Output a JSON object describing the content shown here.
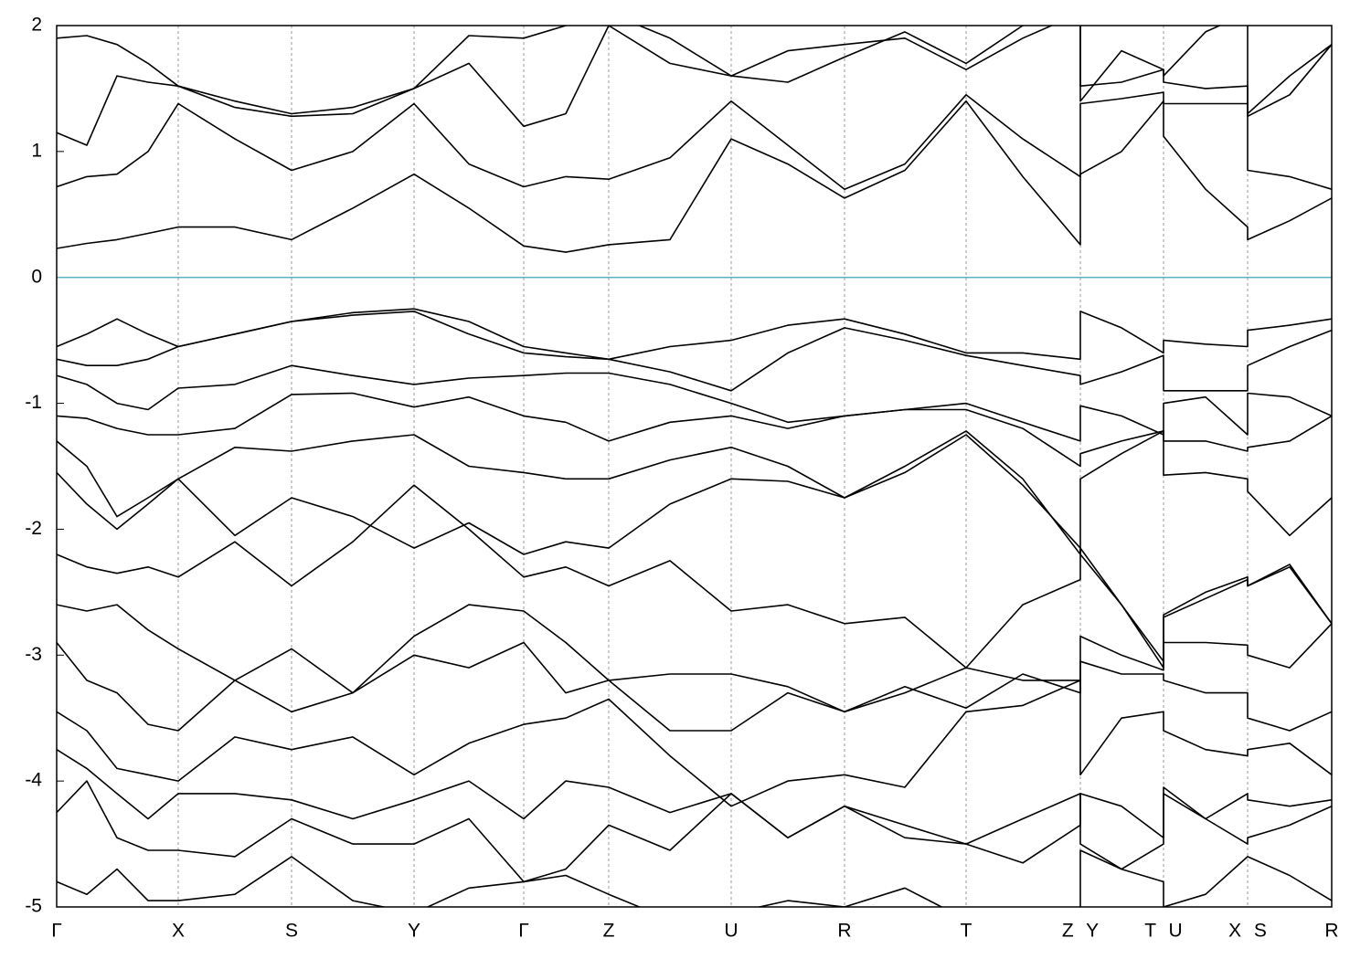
{
  "chart_data": {
    "type": "line",
    "x": [
      0,
      33,
      66,
      100,
      133,
      195,
      257,
      324,
      391,
      451,
      511,
      557,
      604,
      671,
      738,
      800,
      862,
      928,
      995,
      1057,
      1120,
      1120,
      1165,
      1211,
      1211,
      1257,
      1303,
      1303,
      1349,
      1395
    ],
    "xlim": [
      0,
      1395
    ],
    "xticks": [
      {
        "value": 0,
        "label": "Γ"
      },
      {
        "value": 133,
        "label": "X"
      },
      {
        "value": 257,
        "label": "S"
      },
      {
        "value": 391,
        "label": "Y"
      },
      {
        "value": 511,
        "label": "Γ"
      },
      {
        "value": 604,
        "label": "Z"
      },
      {
        "value": 738,
        "label": "U"
      },
      {
        "value": 862,
        "label": "R"
      },
      {
        "value": 995,
        "label": "T"
      },
      {
        "value": 1120,
        "label": "Z Y"
      },
      {
        "value": 1211,
        "label": "T U"
      },
      {
        "value": 1303,
        "label": "X S"
      },
      {
        "value": 1395,
        "label": "R"
      }
    ],
    "ylim": [
      -5,
      2
    ],
    "yticks": [
      2,
      1,
      0,
      -1,
      -2,
      -3,
      -4,
      -5
    ],
    "grid": true,
    "reference_line": {
      "value": 0,
      "color": "#5ab4c8"
    },
    "series": [
      {
        "color": "#000000",
        "values": [
          0.23,
          0.27,
          0.3,
          0.35,
          0.4,
          0.4,
          0.3,
          0.55,
          0.82,
          0.55,
          0.25,
          0.2,
          0.26,
          0.3,
          1.1,
          0.9,
          0.63,
          0.85,
          1.4,
          0.8,
          0.26,
          0.82,
          1.0,
          1.4,
          1.12,
          0.7,
          0.4,
          0.3,
          0.45,
          0.63
        ]
      },
      {
        "color": "#000000",
        "values": [
          0.72,
          0.8,
          0.82,
          1.0,
          1.38,
          1.1,
          0.85,
          1.0,
          1.38,
          0.9,
          0.72,
          0.8,
          0.78,
          0.95,
          1.4,
          1.05,
          0.7,
          0.9,
          1.45,
          1.1,
          0.8,
          1.38,
          1.42,
          1.47,
          1.38,
          1.38,
          1.38,
          0.85,
          0.8,
          0.7
        ]
      },
      {
        "color": "#000000",
        "values": [
          1.15,
          1.05,
          1.6,
          1.55,
          1.52,
          1.35,
          1.28,
          1.3,
          1.5,
          1.7,
          1.2,
          1.3,
          2.0,
          1.7,
          1.6,
          1.55,
          1.75,
          1.95,
          1.7,
          2.0,
          2.1,
          1.52,
          1.55,
          1.65,
          1.55,
          1.5,
          1.52,
          1.28,
          1.45,
          1.85
        ]
      },
      {
        "color": "#000000",
        "values": [
          1.9,
          1.92,
          1.85,
          1.7,
          1.52,
          1.4,
          1.3,
          1.35,
          1.5,
          1.92,
          1.9,
          2.0,
          2.1,
          1.9,
          1.6,
          1.8,
          1.85,
          1.9,
          1.65,
          1.9,
          2.1,
          1.4,
          1.8,
          1.65,
          1.6,
          1.95,
          2.1,
          1.3,
          1.6,
          1.85
        ]
      },
      {
        "color": "#000000",
        "values": [
          -0.55,
          -0.45,
          -0.33,
          -0.45,
          -0.55,
          -0.45,
          -0.35,
          -0.28,
          -0.25,
          -0.35,
          -0.55,
          -0.6,
          -0.65,
          -0.55,
          -0.5,
          -0.38,
          -0.33,
          -0.45,
          -0.6,
          -0.6,
          -0.65,
          -0.27,
          -0.4,
          -0.6,
          -0.5,
          -0.53,
          -0.55,
          -0.42,
          -0.38,
          -0.33
        ]
      },
      {
        "color": "#000000",
        "values": [
          -0.65,
          -0.7,
          -0.7,
          -0.65,
          -0.55,
          -0.45,
          -0.35,
          -0.3,
          -0.27,
          -0.45,
          -0.6,
          -0.63,
          -0.65,
          -0.75,
          -0.9,
          -0.6,
          -0.4,
          -0.5,
          -0.62,
          -0.7,
          -0.78,
          -0.85,
          -0.75,
          -0.62,
          -0.9,
          -0.9,
          -0.9,
          -0.7,
          -0.55,
          -0.42
        ]
      },
      {
        "color": "#000000",
        "values": [
          -0.78,
          -0.85,
          -1.0,
          -1.05,
          -0.88,
          -0.85,
          -0.7,
          -0.78,
          -0.85,
          -0.8,
          -0.78,
          -0.76,
          -0.76,
          -0.85,
          -1.0,
          -1.15,
          -1.1,
          -1.05,
          -1.0,
          -1.15,
          -1.3,
          -1.02,
          -1.1,
          -1.25,
          -1.0,
          -0.95,
          -1.25,
          -0.92,
          -0.95,
          -1.1
        ]
      },
      {
        "color": "#000000",
        "values": [
          -1.1,
          -1.12,
          -1.2,
          -1.25,
          -1.25,
          -1.2,
          -0.93,
          -0.92,
          -1.03,
          -0.95,
          -1.1,
          -1.15,
          -1.3,
          -1.15,
          -1.1,
          -1.2,
          -1.1,
          -1.05,
          -1.05,
          -1.2,
          -1.5,
          -1.4,
          -1.3,
          -1.22,
          -1.3,
          -1.3,
          -1.38,
          -1.35,
          -1.3,
          -1.1
        ]
      },
      {
        "color": "#000000",
        "values": [
          -1.3,
          -1.5,
          -1.9,
          -1.75,
          -1.6,
          -1.35,
          -1.38,
          -1.3,
          -1.25,
          -1.5,
          -1.55,
          -1.6,
          -1.6,
          -1.45,
          -1.35,
          -1.5,
          -1.75,
          -1.5,
          -1.22,
          -1.6,
          -2.2,
          -1.6,
          -1.4,
          -1.22,
          -1.57,
          -1.55,
          -1.6,
          -1.7,
          -2.05,
          -1.75
        ]
      },
      {
        "color": "#000000",
        "values": [
          -1.55,
          -1.8,
          -2.0,
          -1.8,
          -1.6,
          -2.05,
          -1.75,
          -1.9,
          -2.15,
          -1.95,
          -2.2,
          -2.1,
          -2.15,
          -1.8,
          -1.6,
          -1.62,
          -1.75,
          -1.55,
          -1.25,
          -1.65,
          -2.15,
          -2.2,
          -2.6,
          -3.05,
          -2.68,
          -2.5,
          -2.38,
          -2.45,
          -2.28,
          -2.75
        ]
      },
      {
        "color": "#000000",
        "values": [
          -2.2,
          -2.3,
          -2.35,
          -2.3,
          -2.38,
          -2.1,
          -2.45,
          -2.1,
          -1.65,
          -2.0,
          -2.38,
          -2.3,
          -2.45,
          -2.25,
          -2.65,
          -2.6,
          -2.75,
          -2.7,
          -3.1,
          -2.6,
          -2.4,
          -2.15,
          -2.6,
          -3.1,
          -2.7,
          -2.55,
          -2.4,
          -2.45,
          -2.3,
          -2.75
        ]
      },
      {
        "color": "#000000",
        "values": [
          -2.6,
          -2.65,
          -2.6,
          -2.8,
          -2.95,
          -3.2,
          -2.95,
          -3.3,
          -2.85,
          -2.6,
          -2.65,
          -2.9,
          -3.2,
          -3.15,
          -3.15,
          -3.25,
          -3.45,
          -3.3,
          -3.1,
          -3.2,
          -3.2,
          -2.85,
          -3.0,
          -3.12,
          -2.9,
          -2.9,
          -2.92,
          -3.0,
          -3.1,
          -2.75
        ]
      },
      {
        "color": "#000000",
        "values": [
          -2.9,
          -3.2,
          -3.3,
          -3.55,
          -3.6,
          -3.2,
          -3.45,
          -3.3,
          -3.0,
          -3.1,
          -2.9,
          -3.3,
          -3.2,
          -3.6,
          -3.6,
          -3.3,
          -3.45,
          -3.25,
          -3.42,
          -3.15,
          -3.3,
          -3.05,
          -3.15,
          -3.15,
          -3.2,
          -3.3,
          -3.3,
          -3.5,
          -3.6,
          -3.45
        ]
      },
      {
        "color": "#000000",
        "values": [
          -3.45,
          -3.6,
          -3.9,
          -3.95,
          -4.0,
          -3.65,
          -3.75,
          -3.65,
          -3.95,
          -3.7,
          -3.55,
          -3.5,
          -3.35,
          -3.8,
          -4.2,
          -4.0,
          -3.95,
          -4.05,
          -3.45,
          -3.4,
          -3.2,
          -3.95,
          -3.5,
          -3.45,
          -3.6,
          -3.75,
          -3.8,
          -3.75,
          -3.7,
          -3.95
        ]
      },
      {
        "color": "#000000",
        "values": [
          -3.75,
          -3.9,
          -4.1,
          -4.3,
          -4.1,
          -4.1,
          -4.15,
          -4.3,
          -4.15,
          -4.0,
          -4.3,
          -4.0,
          -4.05,
          -4.25,
          -4.1,
          -4.45,
          -4.2,
          -4.35,
          -4.5,
          -4.3,
          -4.1,
          -4.5,
          -4.7,
          -4.5,
          -4.05,
          -4.3,
          -4.1,
          -4.15,
          -4.2,
          -4.15
        ]
      },
      {
        "color": "#000000",
        "values": [
          -4.25,
          -4.0,
          -4.45,
          -4.55,
          -4.55,
          -4.6,
          -4.3,
          -4.5,
          -4.5,
          -4.3,
          -4.8,
          -4.7,
          -4.35,
          -4.55,
          -4.1,
          -4.45,
          -4.2,
          -4.45,
          -4.5,
          -4.65,
          -4.35,
          -4.1,
          -4.2,
          -4.45,
          -4.1,
          -4.3,
          -4.5,
          -4.45,
          -4.35,
          -4.2
        ]
      },
      {
        "color": "#000000",
        "values": [
          -4.8,
          -4.9,
          -4.7,
          -4.95,
          -4.95,
          -4.9,
          -4.6,
          -4.95,
          -5.05,
          -4.85,
          -4.8,
          -4.75,
          -4.9,
          -5.1,
          -5.05,
          -4.95,
          -5.0,
          -4.85,
          -5.1,
          -5.1,
          -5.1,
          -4.55,
          -4.7,
          -4.8,
          -5.0,
          -4.9,
          -4.6,
          -4.6,
          -4.75,
          -4.95
        ]
      }
    ]
  }
}
